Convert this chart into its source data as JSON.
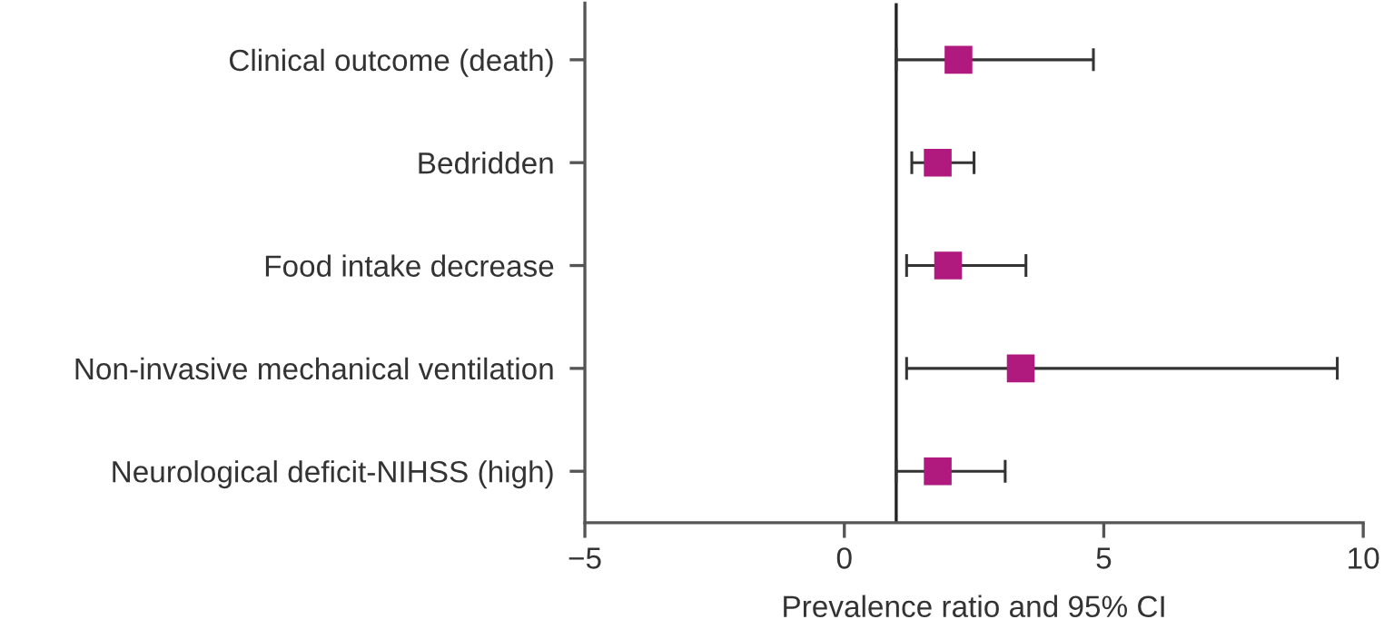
{
  "chart_data": {
    "type": "scatter",
    "orientation": "horizontal",
    "xlabel": "Prevalence ratio and 95% CI",
    "categories": [
      "Clinical outcome (death)",
      "Bedridden",
      "Food intake decrease",
      "Non-invasive mechanical ventilation",
      "Neurological deficit-NIHSS (high)"
    ],
    "series": [
      {
        "color": "#b0197e",
        "values": [
          2.2,
          1.8,
          2.0,
          3.4,
          1.8
        ],
        "errors": [
          [
            1.0,
            4.8
          ],
          [
            1.3,
            2.5
          ],
          [
            1.2,
            3.5
          ],
          [
            1.2,
            9.5
          ],
          [
            1.0,
            3.1
          ]
        ]
      }
    ],
    "xlim": [
      -5,
      10
    ],
    "xticks": [
      {
        "value": -5,
        "label": "−5"
      },
      0,
      5,
      10
    ],
    "ref_lines": [
      {
        "axis": "x",
        "value": 1,
        "color": "#222222"
      }
    ],
    "marker": "square",
    "grid": false,
    "legend": false
  }
}
